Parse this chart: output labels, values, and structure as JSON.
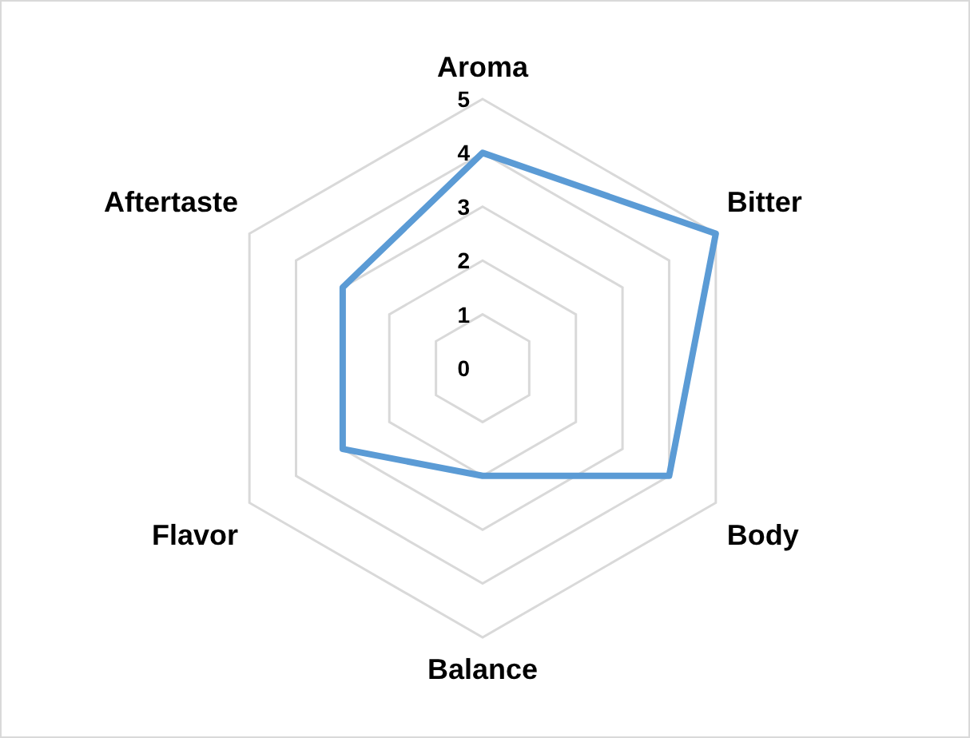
{
  "chart_data": {
    "type": "radar",
    "categories": [
      "Aroma",
      "Bitter",
      "Body",
      "Balance",
      "Flavor",
      "Aftertaste"
    ],
    "series": [
      {
        "color": "#5b9bd5",
        "values": [
          4,
          5,
          4,
          2,
          3,
          3
        ]
      }
    ],
    "ylim": [
      0,
      5
    ],
    "yticks": [
      0,
      1,
      2,
      3,
      4,
      5
    ],
    "grid": true
  }
}
